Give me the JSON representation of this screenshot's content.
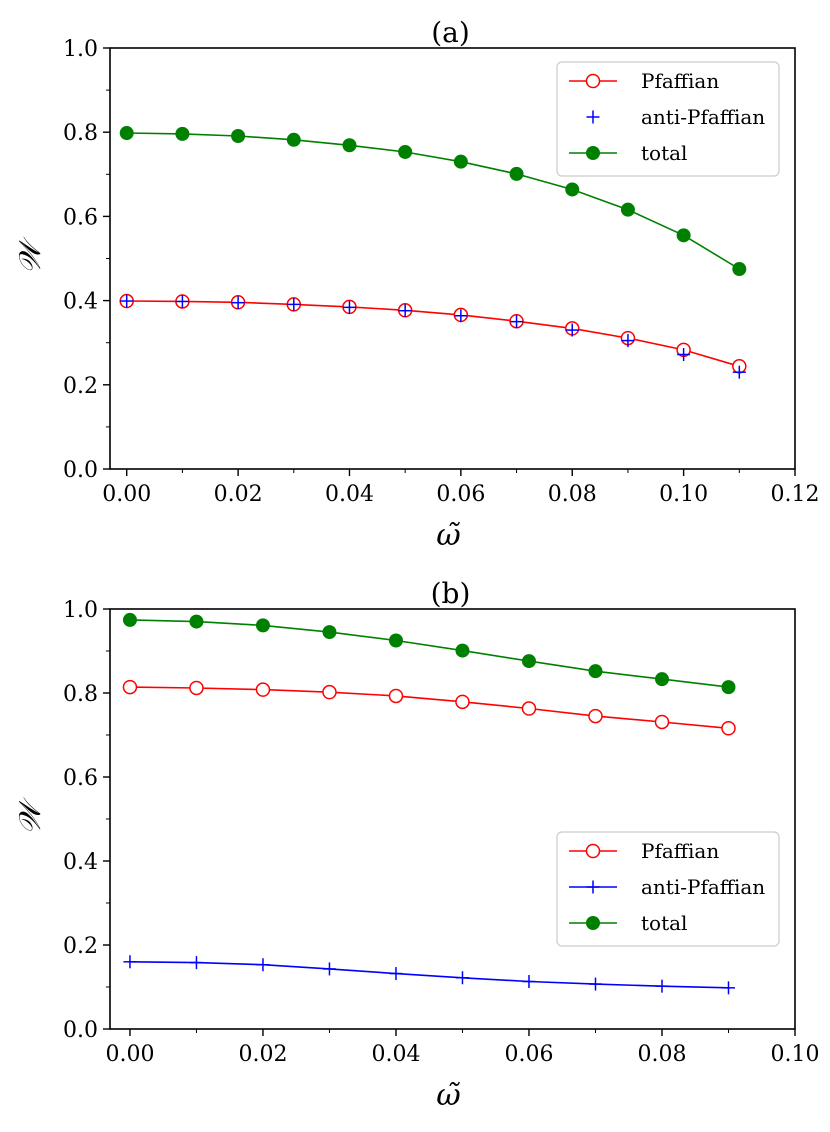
{
  "chart_data": [
    {
      "type": "line",
      "title": "(a)",
      "xlabel": "ω̃",
      "ylabel": "𝒲",
      "xlim": [
        -0.003,
        0.12
      ],
      "ylim": [
        0,
        1.0
      ],
      "xticks": [
        "0.00",
        "0.02",
        "0.04",
        "0.06",
        "0.08",
        "0.10",
        "0.12"
      ],
      "yticks": [
        "0.0",
        "0.2",
        "0.4",
        "0.6",
        "0.8",
        "1.0"
      ],
      "legend_position": "top-right",
      "x": [
        0.0,
        0.01,
        0.02,
        0.03,
        0.04,
        0.05,
        0.06,
        0.07,
        0.08,
        0.09,
        0.1,
        0.11
      ],
      "series": [
        {
          "name": "Pfaffian",
          "style": "line-open-circle",
          "color": "#ff0000",
          "values": [
            0.399,
            0.398,
            0.396,
            0.391,
            0.385,
            0.377,
            0.366,
            0.351,
            0.334,
            0.311,
            0.283,
            0.244
          ]
        },
        {
          "name": "anti-Pfaffian",
          "style": "plus-marker",
          "color": "#0000ff",
          "values": [
            0.399,
            0.398,
            0.395,
            0.391,
            0.384,
            0.376,
            0.364,
            0.35,
            0.33,
            0.305,
            0.272,
            0.23
          ]
        },
        {
          "name": "total",
          "style": "line-filled-circle",
          "color": "#008000",
          "values": [
            0.798,
            0.796,
            0.791,
            0.782,
            0.769,
            0.753,
            0.73,
            0.701,
            0.664,
            0.616,
            0.555,
            0.475
          ]
        }
      ]
    },
    {
      "type": "line",
      "title": "(b)",
      "xlabel": "ω̃",
      "ylabel": "𝒲",
      "xlim": [
        -0.003,
        0.1
      ],
      "ylim": [
        0,
        1.0
      ],
      "xticks": [
        "0.00",
        "0.02",
        "0.04",
        "0.06",
        "0.08",
        "0.10"
      ],
      "yticks": [
        "0.0",
        "0.2",
        "0.4",
        "0.6",
        "0.8",
        "1.0"
      ],
      "legend_position": "center-right",
      "x": [
        0.0,
        0.01,
        0.02,
        0.03,
        0.04,
        0.05,
        0.06,
        0.07,
        0.08,
        0.09
      ],
      "series": [
        {
          "name": "Pfaffian",
          "style": "line-open-circle",
          "color": "#ff0000",
          "values": [
            0.814,
            0.812,
            0.808,
            0.802,
            0.793,
            0.779,
            0.763,
            0.745,
            0.731,
            0.716
          ]
        },
        {
          "name": "anti-Pfaffian",
          "style": "line-plus",
          "color": "#0000ff",
          "values": [
            0.16,
            0.158,
            0.153,
            0.143,
            0.132,
            0.122,
            0.113,
            0.107,
            0.102,
            0.098
          ]
        },
        {
          "name": "total",
          "style": "line-filled-circle",
          "color": "#008000",
          "values": [
            0.974,
            0.97,
            0.961,
            0.945,
            0.925,
            0.901,
            0.876,
            0.852,
            0.833,
            0.814
          ]
        }
      ]
    }
  ]
}
